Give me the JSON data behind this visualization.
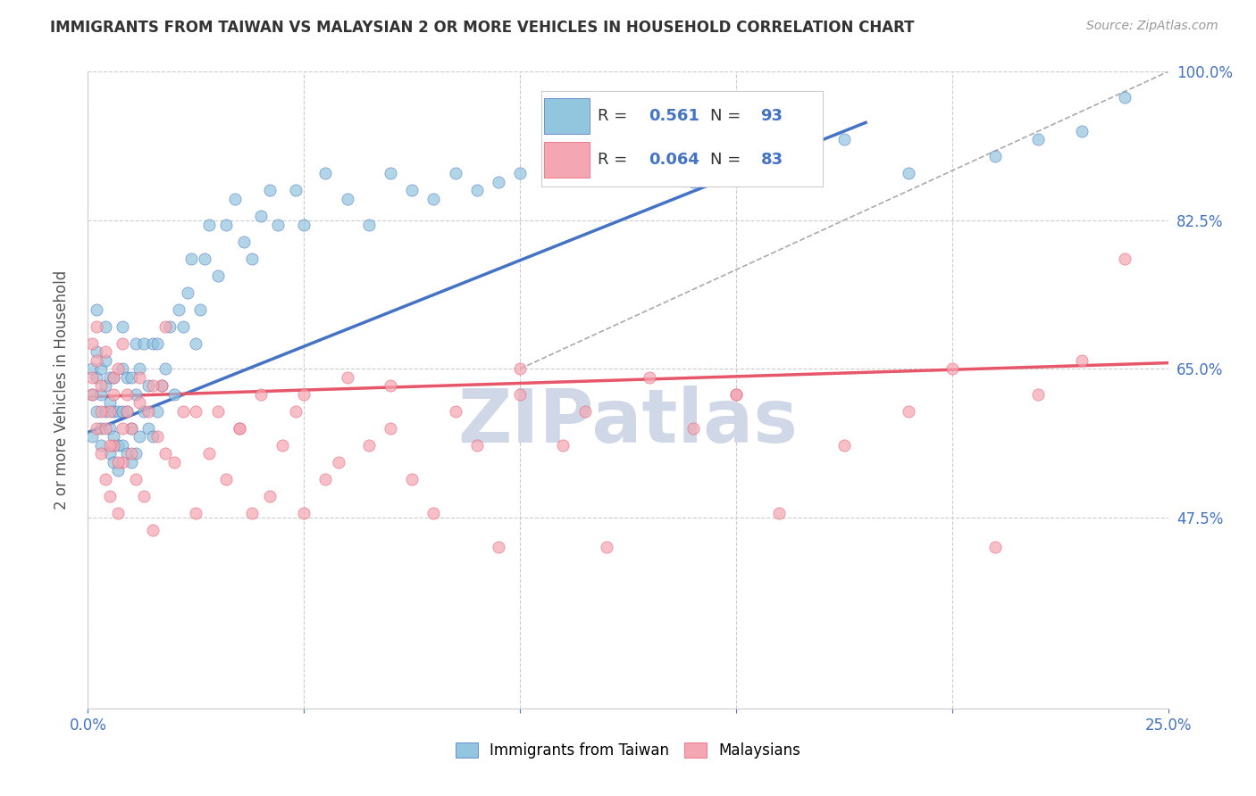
{
  "title": "IMMIGRANTS FROM TAIWAN VS MALAYSIAN 2 OR MORE VEHICLES IN HOUSEHOLD CORRELATION CHART",
  "source": "Source: ZipAtlas.com",
  "ylabel": "2 or more Vehicles in Household",
  "xlim": [
    0.0,
    0.25
  ],
  "ylim": [
    0.25,
    1.0
  ],
  "xticks": [
    0.0,
    0.05,
    0.1,
    0.15,
    0.2,
    0.25
  ],
  "xticklabels": [
    "0.0%",
    "",
    "",
    "",
    "",
    "25.0%"
  ],
  "yticks": [
    0.25,
    0.475,
    0.65,
    0.825,
    1.0
  ],
  "yticklabels": [
    "",
    "47.5%",
    "65.0%",
    "82.5%",
    "100.0%"
  ],
  "R_taiwan": 0.561,
  "N_taiwan": 93,
  "R_malaysian": 0.064,
  "N_malaysian": 83,
  "color_taiwan": "#92C5DE",
  "color_malaysian": "#F4A6B2",
  "color_line_taiwan": "#4472C4",
  "color_line_malaysian": "#E8566A",
  "taiwan_scatter_x": [
    0.001,
    0.001,
    0.001,
    0.002,
    0.002,
    0.002,
    0.002,
    0.003,
    0.003,
    0.003,
    0.003,
    0.004,
    0.004,
    0.004,
    0.004,
    0.005,
    0.005,
    0.005,
    0.005,
    0.006,
    0.006,
    0.006,
    0.006,
    0.007,
    0.007,
    0.007,
    0.008,
    0.008,
    0.008,
    0.008,
    0.009,
    0.009,
    0.009,
    0.01,
    0.01,
    0.01,
    0.011,
    0.011,
    0.011,
    0.012,
    0.012,
    0.013,
    0.013,
    0.014,
    0.014,
    0.015,
    0.015,
    0.016,
    0.016,
    0.017,
    0.018,
    0.019,
    0.02,
    0.021,
    0.022,
    0.023,
    0.024,
    0.025,
    0.026,
    0.027,
    0.028,
    0.03,
    0.032,
    0.034,
    0.036,
    0.038,
    0.04,
    0.042,
    0.044,
    0.048,
    0.05,
    0.055,
    0.06,
    0.065,
    0.07,
    0.075,
    0.08,
    0.085,
    0.09,
    0.095,
    0.1,
    0.11,
    0.12,
    0.13,
    0.14,
    0.15,
    0.16,
    0.175,
    0.19,
    0.21,
    0.22,
    0.23,
    0.24
  ],
  "taiwan_scatter_y": [
    0.62,
    0.65,
    0.57,
    0.6,
    0.64,
    0.67,
    0.72,
    0.58,
    0.62,
    0.65,
    0.56,
    0.6,
    0.63,
    0.66,
    0.7,
    0.55,
    0.58,
    0.61,
    0.64,
    0.54,
    0.57,
    0.6,
    0.64,
    0.53,
    0.56,
    0.6,
    0.56,
    0.6,
    0.65,
    0.7,
    0.55,
    0.6,
    0.64,
    0.54,
    0.58,
    0.64,
    0.55,
    0.62,
    0.68,
    0.57,
    0.65,
    0.6,
    0.68,
    0.58,
    0.63,
    0.57,
    0.68,
    0.6,
    0.68,
    0.63,
    0.65,
    0.7,
    0.62,
    0.72,
    0.7,
    0.74,
    0.78,
    0.68,
    0.72,
    0.78,
    0.82,
    0.76,
    0.82,
    0.85,
    0.8,
    0.78,
    0.83,
    0.86,
    0.82,
    0.86,
    0.82,
    0.88,
    0.85,
    0.82,
    0.88,
    0.86,
    0.85,
    0.88,
    0.86,
    0.87,
    0.88,
    0.88,
    0.9,
    0.88,
    0.87,
    0.9,
    0.88,
    0.92,
    0.88,
    0.9,
    0.92,
    0.93,
    0.97
  ],
  "malaysian_scatter_x": [
    0.001,
    0.001,
    0.002,
    0.002,
    0.003,
    0.003,
    0.004,
    0.004,
    0.005,
    0.005,
    0.006,
    0.006,
    0.007,
    0.007,
    0.008,
    0.008,
    0.009,
    0.01,
    0.011,
    0.012,
    0.013,
    0.014,
    0.015,
    0.016,
    0.017,
    0.018,
    0.02,
    0.022,
    0.025,
    0.028,
    0.03,
    0.032,
    0.035,
    0.038,
    0.04,
    0.042,
    0.045,
    0.048,
    0.05,
    0.055,
    0.058,
    0.06,
    0.065,
    0.07,
    0.075,
    0.08,
    0.085,
    0.09,
    0.095,
    0.1,
    0.11,
    0.115,
    0.12,
    0.13,
    0.14,
    0.15,
    0.16,
    0.175,
    0.19,
    0.21,
    0.22,
    0.23,
    0.24,
    0.001,
    0.002,
    0.003,
    0.004,
    0.005,
    0.006,
    0.007,
    0.008,
    0.009,
    0.01,
    0.012,
    0.015,
    0.018,
    0.025,
    0.035,
    0.05,
    0.07,
    0.1,
    0.15,
    0.2
  ],
  "malaysian_scatter_y": [
    0.62,
    0.68,
    0.58,
    0.7,
    0.55,
    0.63,
    0.52,
    0.67,
    0.5,
    0.6,
    0.56,
    0.64,
    0.48,
    0.65,
    0.54,
    0.68,
    0.6,
    0.58,
    0.52,
    0.64,
    0.5,
    0.6,
    0.46,
    0.57,
    0.63,
    0.7,
    0.54,
    0.6,
    0.48,
    0.55,
    0.6,
    0.52,
    0.58,
    0.48,
    0.62,
    0.5,
    0.56,
    0.6,
    0.48,
    0.52,
    0.54,
    0.64,
    0.56,
    0.58,
    0.52,
    0.48,
    0.6,
    0.56,
    0.44,
    0.62,
    0.56,
    0.6,
    0.44,
    0.64,
    0.58,
    0.62,
    0.48,
    0.56,
    0.6,
    0.44,
    0.62,
    0.66,
    0.78,
    0.64,
    0.66,
    0.6,
    0.58,
    0.56,
    0.62,
    0.54,
    0.58,
    0.62,
    0.55,
    0.61,
    0.63,
    0.55,
    0.6,
    0.58,
    0.62,
    0.63,
    0.65,
    0.62,
    0.65
  ],
  "taiwan_line_x": [
    0.0,
    0.18
  ],
  "taiwan_line_y": [
    0.575,
    0.94
  ],
  "malaysian_line_x": [
    0.0,
    0.25
  ],
  "malaysian_line_y": [
    0.617,
    0.657
  ],
  "diag_line_x": [
    0.1,
    0.25
  ],
  "diag_line_y": [
    0.65,
    1.0
  ],
  "background_color": "#ffffff",
  "grid_color": "#cccccc",
  "watermark": "ZIPatlas",
  "watermark_color": "#d0d8e8"
}
